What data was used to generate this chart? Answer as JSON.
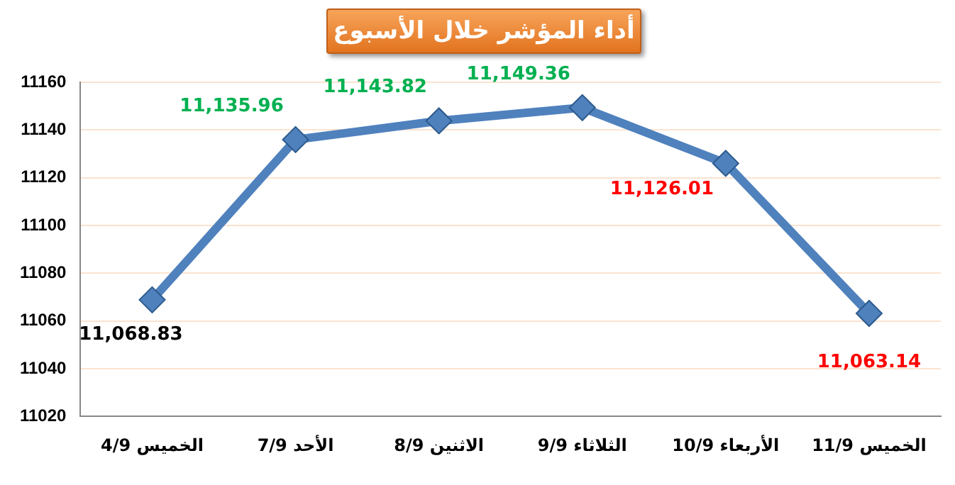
{
  "chart_data": {
    "type": "line",
    "title": "أداء المؤشر خلال الأسبوع",
    "categories": [
      "الخميس 4/9",
      "الأحد 7/9",
      "الاثنين 8/9",
      "الثلاثاء 9/9",
      "الأربعاء 10/9",
      "الخميس 11/9"
    ],
    "series": [
      {
        "color": "#4f81bd",
        "values": [
          11068.83,
          11135.96,
          11143.82,
          11149.36,
          11126.01,
          11063.14
        ],
        "value_labels": [
          "11,068.83",
          "11,135.96",
          "11,143.82",
          "11,149.36",
          "11,126.01",
          "11,063.14"
        ]
      }
    ],
    "ylim": [
      11020,
      11160
    ],
    "yticks": [
      11020,
      11040,
      11060,
      11080,
      11100,
      11120,
      11140,
      11160
    ],
    "grid": "y",
    "legend": false,
    "marker": "diamond",
    "line_style": "solid"
  }
}
